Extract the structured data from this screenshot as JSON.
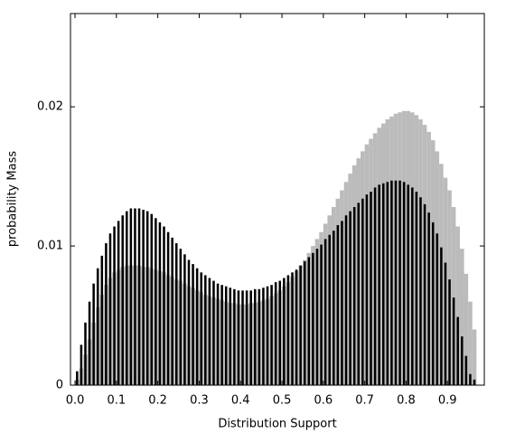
{
  "chart_data": {
    "type": "bar",
    "xlabel": "Distribution Support",
    "ylabel": "probability Mass",
    "x": [
      0.005,
      0.015,
      0.025,
      0.035,
      0.045,
      0.055,
      0.065,
      0.075,
      0.085,
      0.095,
      0.105,
      0.115,
      0.125,
      0.135,
      0.145,
      0.155,
      0.165,
      0.175,
      0.185,
      0.195,
      0.205,
      0.215,
      0.225,
      0.235,
      0.245,
      0.255,
      0.265,
      0.275,
      0.285,
      0.295,
      0.305,
      0.315,
      0.325,
      0.335,
      0.345,
      0.355,
      0.365,
      0.375,
      0.385,
      0.395,
      0.405,
      0.415,
      0.425,
      0.435,
      0.445,
      0.455,
      0.465,
      0.475,
      0.485,
      0.495,
      0.505,
      0.515,
      0.525,
      0.535,
      0.545,
      0.555,
      0.565,
      0.575,
      0.585,
      0.595,
      0.605,
      0.615,
      0.625,
      0.635,
      0.645,
      0.655,
      0.665,
      0.675,
      0.685,
      0.695,
      0.705,
      0.715,
      0.725,
      0.735,
      0.745,
      0.755,
      0.765,
      0.775,
      0.785,
      0.795,
      0.805,
      0.815,
      0.825,
      0.835,
      0.845,
      0.855,
      0.865,
      0.875,
      0.885,
      0.895,
      0.905,
      0.915,
      0.925,
      0.935,
      0.945,
      0.955,
      0.965
    ],
    "series": [
      {
        "color": "#bbbbbb",
        "values": [
          0.0004,
          0.0012,
          0.0022,
          0.0033,
          0.0045,
          0.0056,
          0.0065,
          0.0072,
          0.0077,
          0.0081,
          0.0083,
          0.0085,
          0.0086,
          0.0086,
          0.0086,
          0.0086,
          0.0085,
          0.0085,
          0.0084,
          0.0083,
          0.0082,
          0.0081,
          0.0079,
          0.0078,
          0.0076,
          0.0075,
          0.0073,
          0.0071,
          0.007,
          0.0068,
          0.0067,
          0.0065,
          0.0064,
          0.0063,
          0.0062,
          0.0061,
          0.006,
          0.0059,
          0.0059,
          0.0058,
          0.0058,
          0.0058,
          0.0059,
          0.0059,
          0.006,
          0.0061,
          0.0062,
          0.0064,
          0.0066,
          0.0068,
          0.0071,
          0.0074,
          0.0078,
          0.0082,
          0.0086,
          0.009,
          0.0095,
          0.01,
          0.0105,
          0.011,
          0.0116,
          0.0122,
          0.0128,
          0.0134,
          0.014,
          0.0146,
          0.0152,
          0.0158,
          0.0163,
          0.0168,
          0.0173,
          0.0177,
          0.0181,
          0.0185,
          0.0188,
          0.0191,
          0.0193,
          0.0195,
          0.0196,
          0.0197,
          0.0197,
          0.0196,
          0.0194,
          0.0191,
          0.0187,
          0.0182,
          0.0176,
          0.0168,
          0.0159,
          0.0149,
          0.014,
          0.0128,
          0.0114,
          0.0098,
          0.008,
          0.006,
          0.004
        ]
      },
      {
        "color": "#000000",
        "values": [
          0.001,
          0.0029,
          0.0045,
          0.006,
          0.0073,
          0.0084,
          0.0093,
          0.0102,
          0.0109,
          0.0114,
          0.0118,
          0.0122,
          0.0125,
          0.0127,
          0.0127,
          0.0127,
          0.0126,
          0.0125,
          0.0123,
          0.012,
          0.0117,
          0.0114,
          0.011,
          0.0106,
          0.0102,
          0.0098,
          0.0094,
          0.009,
          0.0087,
          0.0084,
          0.0081,
          0.0079,
          0.0077,
          0.0075,
          0.0073,
          0.0072,
          0.0071,
          0.007,
          0.0069,
          0.0068,
          0.0068,
          0.0068,
          0.0068,
          0.0069,
          0.0069,
          0.007,
          0.0071,
          0.0072,
          0.0074,
          0.0075,
          0.0077,
          0.0079,
          0.0081,
          0.0083,
          0.0086,
          0.0089,
          0.0092,
          0.0095,
          0.0098,
          0.0101,
          0.0105,
          0.0108,
          0.0111,
          0.0115,
          0.0118,
          0.0122,
          0.0125,
          0.0128,
          0.0131,
          0.0134,
          0.0137,
          0.0139,
          0.0142,
          0.0144,
          0.0145,
          0.0146,
          0.0147,
          0.0147,
          0.0147,
          0.0146,
          0.0144,
          0.0142,
          0.0139,
          0.0135,
          0.013,
          0.0124,
          0.0117,
          0.0109,
          0.0099,
          0.0088,
          0.0076,
          0.0063,
          0.0049,
          0.0035,
          0.0021,
          0.0008,
          0.0004
        ]
      }
    ],
    "xlim": [
      -0.011,
      0.989
    ],
    "ylim": [
      0,
      0.0267
    ],
    "xticks": [
      {
        "value": 0,
        "label": "0.0"
      },
      0.1,
      0.2,
      0.3,
      0.4,
      0.5,
      0.6,
      0.7,
      0.8,
      0.9
    ],
    "yticks": [
      0,
      0.01,
      0.02
    ]
  }
}
